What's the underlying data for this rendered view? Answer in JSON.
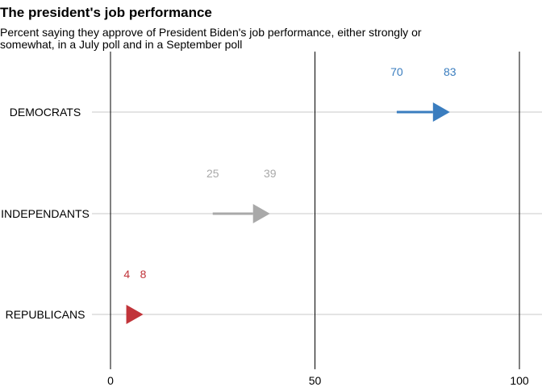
{
  "chart_data": {
    "type": "arrow-range",
    "title": "The president's job performance",
    "subtitle": "Percent saying they approve of President Biden's job performance, either strongly or somewhat, in a July poll and in a September poll",
    "categories": [
      "DEMOCRATS",
      "INDEPENDANTS",
      "REPUBLICANS"
    ],
    "series": [
      {
        "category": "DEMOCRATS",
        "start": 70,
        "end": 83,
        "color": "#3a7dbf"
      },
      {
        "category": "INDEPENDANTS",
        "start": 25,
        "end": 39,
        "color": "#a9a9a9"
      },
      {
        "category": "REPUBLICANS",
        "start": 4,
        "end": 8,
        "color": "#c1343a"
      }
    ],
    "xlim": [
      0,
      100
    ],
    "xticks": [
      0,
      50,
      100
    ],
    "grid": true
  }
}
